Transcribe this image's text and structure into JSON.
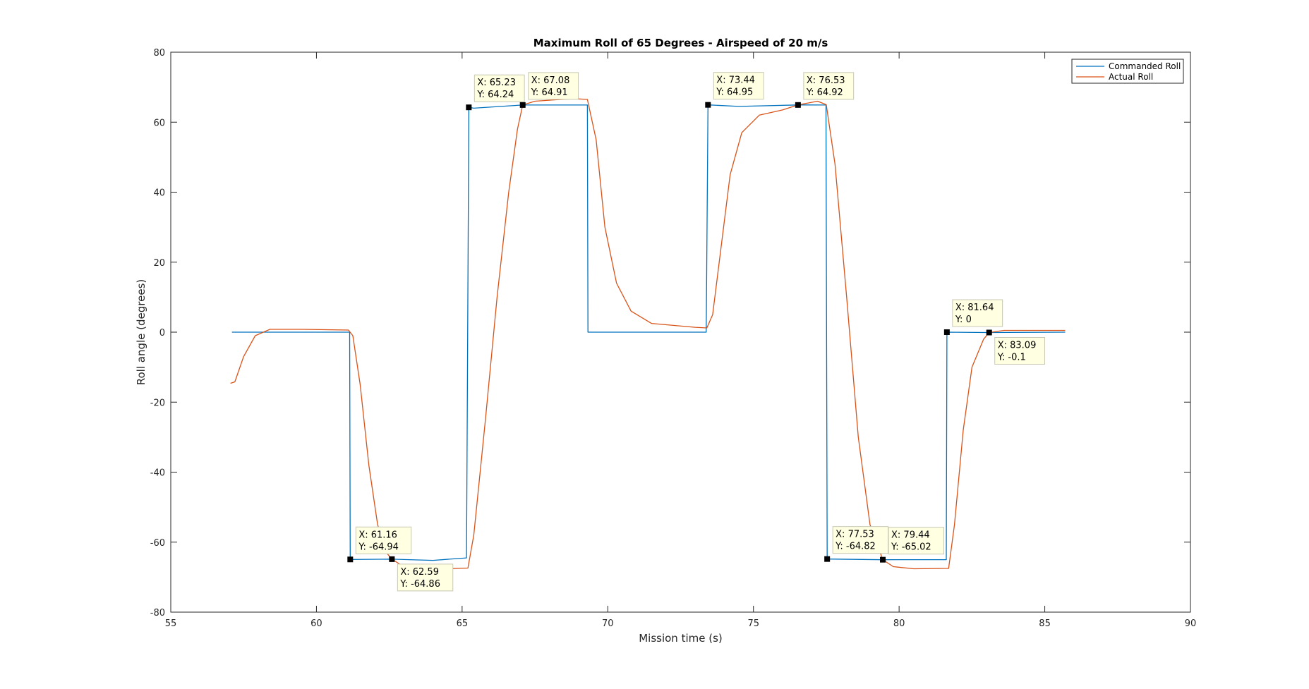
{
  "chart_data": {
    "type": "line",
    "title": "Maximum Roll of 65 Degrees - Airspeed of 20 m/s",
    "xlabel": "Mission time (s)",
    "ylabel": "Roll angle (degrees)",
    "xlim": [
      55,
      90
    ],
    "ylim": [
      -80,
      80
    ],
    "xticks": [
      55,
      60,
      65,
      70,
      75,
      80,
      85,
      90
    ],
    "yticks": [
      -80,
      -60,
      -40,
      -20,
      0,
      20,
      40,
      60,
      80
    ],
    "grid": false,
    "legend_position": "top-right",
    "series": [
      {
        "name": "Commanded Roll",
        "color": "#0072BD",
        "x": [
          57.1,
          61.14,
          61.16,
          62.59,
          64.0,
          65.15,
          65.23,
          65.4,
          67.08,
          69.3,
          69.32,
          73.38,
          73.44,
          74.5,
          76.53,
          77.49,
          77.53,
          79.44,
          80.5,
          81.62,
          81.64,
          83.09,
          85.7
        ],
        "y": [
          0,
          0,
          -64.94,
          -64.86,
          -65.2,
          -64.5,
          64.24,
          64.0,
          64.91,
          64.9,
          0,
          0,
          64.95,
          64.5,
          64.92,
          64.9,
          -64.82,
          -65.02,
          -65.0,
          -65.0,
          0,
          -0.1,
          0
        ]
      },
      {
        "name": "Actual Roll",
        "color": "#D95319",
        "x": [
          57.05,
          57.2,
          57.5,
          57.9,
          58.4,
          59.5,
          61.1,
          61.25,
          61.5,
          61.8,
          62.1,
          62.4,
          62.59,
          62.9,
          63.5,
          64.5,
          65.2,
          65.4,
          65.8,
          66.2,
          66.6,
          66.9,
          67.08,
          67.5,
          68.2,
          68.9,
          69.3,
          69.6,
          69.9,
          70.3,
          70.8,
          71.5,
          73.0,
          73.4,
          73.6,
          73.9,
          74.2,
          74.6,
          75.2,
          76.0,
          76.53,
          77.2,
          77.5,
          77.8,
          78.2,
          78.6,
          79.0,
          79.44,
          79.8,
          80.5,
          81.7,
          81.9,
          82.2,
          82.5,
          82.9,
          83.09,
          83.6,
          84.5,
          85.7
        ],
        "y": [
          -14.6,
          -14.2,
          -7.0,
          -1.0,
          0.8,
          0.8,
          0.6,
          -1.0,
          -15.0,
          -38.0,
          -55.0,
          -63.0,
          -64.86,
          -66.5,
          -67.7,
          -67.6,
          -67.4,
          -58.0,
          -25.0,
          10.0,
          40.0,
          58.0,
          64.91,
          66.0,
          66.4,
          66.7,
          66.5,
          55.0,
          30.0,
          14.0,
          6.0,
          2.5,
          1.4,
          1.2,
          5.0,
          25.0,
          45.0,
          57.0,
          62.0,
          63.5,
          64.92,
          66.0,
          65.0,
          48.0,
          10.0,
          -30.0,
          -55.0,
          -65.02,
          -67.0,
          -67.6,
          -67.5,
          -55.0,
          -28.0,
          -10.0,
          -2.0,
          -0.1,
          0.5,
          0.5,
          0.5
        ]
      }
    ],
    "datatips": [
      {
        "x_text": "X: 65.23",
        "y_text": "Y: 64.24",
        "x": 65.23,
        "y": 64.24,
        "placement": "above-right"
      },
      {
        "x_text": "X: 67.08",
        "y_text": "Y: 64.91",
        "x": 67.08,
        "y": 64.91,
        "placement": "above-right"
      },
      {
        "x_text": "X: 73.44",
        "y_text": "Y: 64.95",
        "x": 73.44,
        "y": 64.95,
        "placement": "above-right"
      },
      {
        "x_text": "X: 76.53",
        "y_text": "Y: 64.92",
        "x": 76.53,
        "y": 64.92,
        "placement": "above-right"
      },
      {
        "x_text": "X: 61.16",
        "y_text": "Y: -64.94",
        "x": 61.16,
        "y": -64.94,
        "placement": "above-right"
      },
      {
        "x_text": "X: 62.59",
        "y_text": "Y: -64.86",
        "x": 62.59,
        "y": -64.86,
        "placement": "below-right"
      },
      {
        "x_text": "X: 77.53",
        "y_text": "Y: -64.82",
        "x": 77.53,
        "y": -64.82,
        "placement": "above-right"
      },
      {
        "x_text": "X: 79.44",
        "y_text": "Y: -65.02",
        "x": 79.44,
        "y": -65.02,
        "placement": "above-right"
      },
      {
        "x_text": "X: 81.64",
        "y_text": "Y: 0",
        "x": 81.64,
        "y": 0,
        "placement": "above-right"
      },
      {
        "x_text": "X: 83.09",
        "y_text": "Y: -0.1",
        "x": 83.09,
        "y": -0.1,
        "placement": "below-right"
      }
    ]
  }
}
